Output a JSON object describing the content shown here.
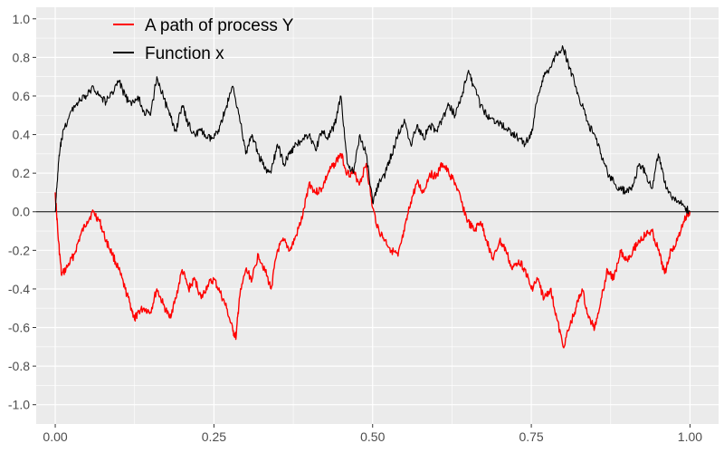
{
  "chart_data": {
    "type": "line",
    "title": "",
    "xlabel": "",
    "ylabel": "",
    "xlim": [
      -0.03,
      1.045
    ],
    "ylim": [
      -1.1,
      1.06
    ],
    "x_ticks": [
      0.0,
      0.25,
      0.5,
      0.75,
      1.0
    ],
    "x_tick_labels": [
      "0.00",
      "0.25",
      "0.50",
      "0.75",
      "1.00"
    ],
    "y_ticks": [
      -1.0,
      -0.8,
      -0.6,
      -0.4,
      -0.2,
      0.0,
      0.2,
      0.4,
      0.6,
      0.8,
      1.0
    ],
    "y_tick_labels": [
      "-1.0",
      "-0.8",
      "-0.6",
      "-0.4",
      "-0.2",
      "0.0",
      "0.2",
      "0.4",
      "0.6",
      "0.8",
      "1.0"
    ],
    "grid": true,
    "background": "#ebebeb",
    "grid_color": "#ffffff",
    "legend_position": "top-left",
    "reference_line": {
      "y": 0.0,
      "color": "#000000"
    },
    "series": [
      {
        "name": "A path of process Y",
        "color": "#ff0000",
        "x": [
          0.0,
          0.005,
          0.01,
          0.02,
          0.03,
          0.04,
          0.05,
          0.06,
          0.07,
          0.08,
          0.09,
          0.1,
          0.11,
          0.12,
          0.125,
          0.13,
          0.14,
          0.15,
          0.16,
          0.17,
          0.18,
          0.19,
          0.2,
          0.21,
          0.22,
          0.23,
          0.24,
          0.25,
          0.26,
          0.27,
          0.28,
          0.285,
          0.29,
          0.3,
          0.31,
          0.32,
          0.33,
          0.34,
          0.35,
          0.36,
          0.37,
          0.38,
          0.39,
          0.4,
          0.41,
          0.42,
          0.43,
          0.44,
          0.45,
          0.46,
          0.47,
          0.48,
          0.49,
          0.5,
          0.51,
          0.52,
          0.53,
          0.54,
          0.55,
          0.56,
          0.57,
          0.58,
          0.59,
          0.6,
          0.61,
          0.62,
          0.63,
          0.64,
          0.65,
          0.66,
          0.67,
          0.68,
          0.69,
          0.7,
          0.71,
          0.72,
          0.73,
          0.74,
          0.75,
          0.76,
          0.77,
          0.78,
          0.79,
          0.8,
          0.81,
          0.82,
          0.83,
          0.84,
          0.85,
          0.86,
          0.87,
          0.88,
          0.89,
          0.9,
          0.91,
          0.92,
          0.93,
          0.94,
          0.95,
          0.96,
          0.97,
          0.98,
          0.99,
          1.0
        ],
        "y": [
          0.1,
          -0.15,
          -0.33,
          -0.28,
          -0.22,
          -0.12,
          -0.05,
          0.0,
          -0.05,
          -0.15,
          -0.22,
          -0.3,
          -0.4,
          -0.5,
          -0.56,
          -0.52,
          -0.5,
          -0.52,
          -0.4,
          -0.48,
          -0.55,
          -0.45,
          -0.3,
          -0.4,
          -0.35,
          -0.45,
          -0.38,
          -0.35,
          -0.42,
          -0.5,
          -0.62,
          -0.65,
          -0.45,
          -0.3,
          -0.35,
          -0.22,
          -0.3,
          -0.4,
          -0.2,
          -0.15,
          -0.2,
          -0.12,
          -0.02,
          0.15,
          0.1,
          0.12,
          0.2,
          0.25,
          0.3,
          0.2,
          0.2,
          0.15,
          0.25,
          0.02,
          -0.1,
          -0.15,
          -0.2,
          -0.23,
          -0.1,
          0.05,
          0.15,
          0.1,
          0.2,
          0.18,
          0.25,
          0.2,
          0.15,
          0.05,
          -0.05,
          -0.1,
          -0.05,
          -0.15,
          -0.25,
          -0.15,
          -0.2,
          -0.3,
          -0.25,
          -0.3,
          -0.4,
          -0.35,
          -0.45,
          -0.4,
          -0.55,
          -0.7,
          -0.6,
          -0.5,
          -0.4,
          -0.55,
          -0.6,
          -0.45,
          -0.3,
          -0.35,
          -0.2,
          -0.25,
          -0.2,
          -0.15,
          -0.12,
          -0.1,
          -0.2,
          -0.32,
          -0.2,
          -0.15,
          -0.05,
          0.0
        ]
      },
      {
        "name": "Function x",
        "color": "#000000",
        "x": [
          0.0,
          0.005,
          0.01,
          0.02,
          0.03,
          0.04,
          0.05,
          0.06,
          0.07,
          0.08,
          0.09,
          0.1,
          0.11,
          0.12,
          0.13,
          0.14,
          0.15,
          0.16,
          0.17,
          0.18,
          0.19,
          0.2,
          0.21,
          0.22,
          0.23,
          0.24,
          0.25,
          0.26,
          0.27,
          0.28,
          0.29,
          0.3,
          0.31,
          0.32,
          0.33,
          0.34,
          0.35,
          0.36,
          0.37,
          0.38,
          0.39,
          0.4,
          0.41,
          0.42,
          0.43,
          0.44,
          0.45,
          0.46,
          0.47,
          0.48,
          0.49,
          0.5,
          0.51,
          0.52,
          0.53,
          0.54,
          0.55,
          0.56,
          0.57,
          0.58,
          0.59,
          0.6,
          0.61,
          0.62,
          0.63,
          0.64,
          0.65,
          0.66,
          0.67,
          0.68,
          0.69,
          0.7,
          0.71,
          0.72,
          0.73,
          0.74,
          0.75,
          0.76,
          0.77,
          0.78,
          0.79,
          0.8,
          0.81,
          0.82,
          0.83,
          0.84,
          0.85,
          0.86,
          0.87,
          0.88,
          0.89,
          0.9,
          0.91,
          0.92,
          0.93,
          0.94,
          0.95,
          0.96,
          0.97,
          0.98,
          0.99,
          1.0
        ],
        "y": [
          0.0,
          0.25,
          0.38,
          0.48,
          0.55,
          0.58,
          0.6,
          0.65,
          0.6,
          0.57,
          0.62,
          0.68,
          0.6,
          0.55,
          0.6,
          0.52,
          0.5,
          0.7,
          0.6,
          0.5,
          0.42,
          0.55,
          0.45,
          0.4,
          0.42,
          0.38,
          0.38,
          0.45,
          0.55,
          0.65,
          0.5,
          0.3,
          0.4,
          0.3,
          0.22,
          0.2,
          0.35,
          0.25,
          0.3,
          0.35,
          0.38,
          0.4,
          0.32,
          0.42,
          0.38,
          0.45,
          0.6,
          0.25,
          0.2,
          0.4,
          0.3,
          0.05,
          0.15,
          0.2,
          0.3,
          0.4,
          0.48,
          0.35,
          0.45,
          0.38,
          0.45,
          0.42,
          0.48,
          0.55,
          0.5,
          0.6,
          0.72,
          0.65,
          0.55,
          0.5,
          0.48,
          0.46,
          0.43,
          0.41,
          0.38,
          0.35,
          0.4,
          0.6,
          0.7,
          0.75,
          0.82,
          0.85,
          0.75,
          0.65,
          0.55,
          0.45,
          0.4,
          0.3,
          0.2,
          0.15,
          0.12,
          0.1,
          0.13,
          0.25,
          0.2,
          0.12,
          0.3,
          0.15,
          0.08,
          0.05,
          0.03,
          0.0
        ]
      }
    ]
  }
}
